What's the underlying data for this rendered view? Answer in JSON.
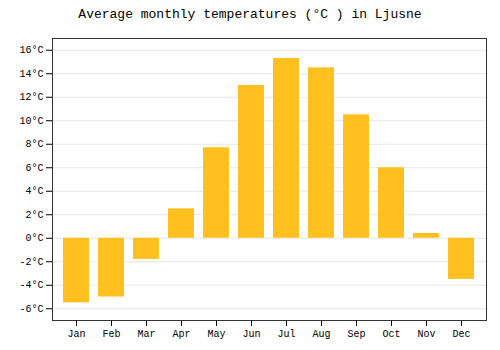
{
  "chart_data": {
    "type": "bar",
    "title": "Average monthly temperatures (°C ) in Ljusne",
    "categories": [
      "Jan",
      "Feb",
      "Mar",
      "Apr",
      "May",
      "Jun",
      "Jul",
      "Aug",
      "Sep",
      "Oct",
      "Nov",
      "Dec"
    ],
    "values": [
      -5.5,
      -5.0,
      -1.8,
      2.5,
      7.7,
      13.0,
      15.3,
      14.5,
      10.5,
      6.0,
      0.4,
      -3.5
    ],
    "color": "#FFC020",
    "ylim": [
      -7,
      17
    ],
    "yticks": [
      {
        "value": -6,
        "label": "-6°C"
      },
      {
        "value": -4,
        "label": "-4°C"
      },
      {
        "value": -2,
        "label": "-2°C"
      },
      {
        "value": 0,
        "label": "0°C"
      },
      {
        "value": 2,
        "label": "2°C"
      },
      {
        "value": 4,
        "label": "4°C"
      },
      {
        "value": 6,
        "label": "6°C"
      },
      {
        "value": 8,
        "label": "8°C"
      },
      {
        "value": 10,
        "label": "10°C"
      },
      {
        "value": 12,
        "label": "12°C"
      },
      {
        "value": 14,
        "label": "14°C"
      },
      {
        "value": 16,
        "label": "16°C"
      }
    ],
    "grid": true
  }
}
